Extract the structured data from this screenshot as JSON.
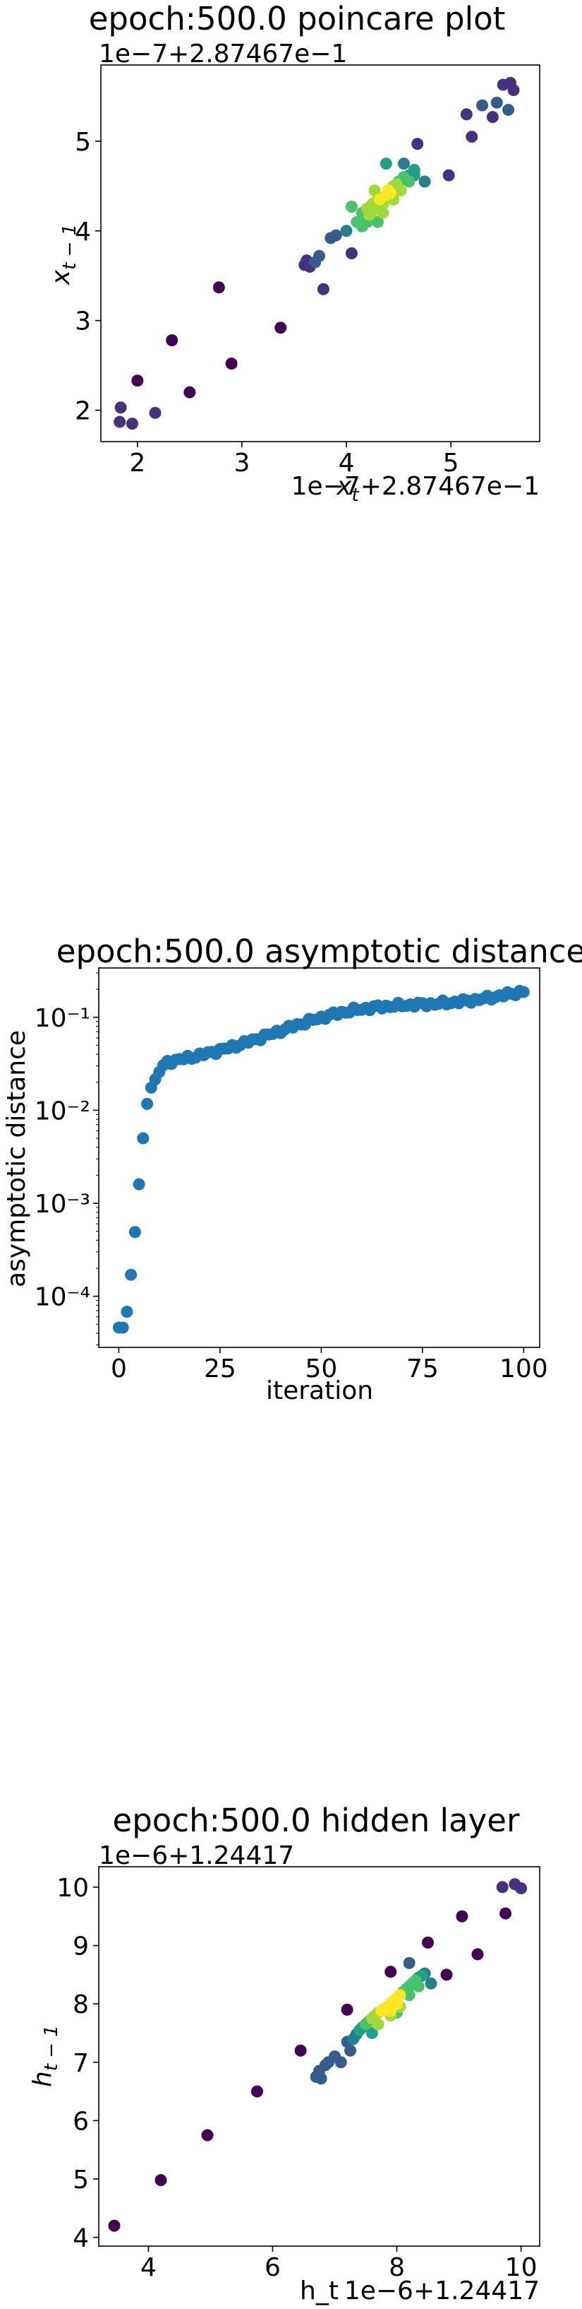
{
  "chart_data": [
    {
      "type": "scatter",
      "title": "epoch:500.0 poincare plot",
      "xlabel": "x_t",
      "ylabel": "x_{t-1}",
      "x_offset_text": "1e−7+2.87467e−1",
      "y_offset_text": "1e−7+2.87467e−1",
      "xlim": [
        1.65,
        5.85
      ],
      "ylim": [
        1.65,
        5.85
      ],
      "xticks": [
        2,
        3,
        4,
        5
      ],
      "yticks": [
        2,
        3,
        4,
        5
      ],
      "xtick_labels": [
        "2",
        "3",
        "4",
        "5"
      ],
      "ytick_labels": [
        "2",
        "3",
        "4",
        "5"
      ],
      "color_by_density": true,
      "points": [
        [
          1.83,
          1.87
        ],
        [
          1.84,
          2.03
        ],
        [
          1.95,
          1.85
        ],
        [
          2.0,
          2.33
        ],
        [
          2.17,
          1.97
        ],
        [
          2.33,
          2.78
        ],
        [
          2.5,
          2.2
        ],
        [
          2.78,
          3.37
        ],
        [
          2.9,
          2.52
        ],
        [
          3.37,
          2.92
        ],
        [
          3.6,
          3.62
        ],
        [
          3.62,
          3.67
        ],
        [
          3.65,
          3.6
        ],
        [
          3.7,
          3.65
        ],
        [
          3.74,
          3.72
        ],
        [
          3.78,
          3.35
        ],
        [
          3.85,
          3.92
        ],
        [
          3.9,
          3.95
        ],
        [
          4.0,
          4.0
        ],
        [
          4.05,
          4.27
        ],
        [
          4.1,
          4.1
        ],
        [
          4.15,
          4.2
        ],
        [
          4.2,
          4.25
        ],
        [
          4.22,
          4.18
        ],
        [
          4.25,
          4.3
        ],
        [
          4.28,
          4.32
        ],
        [
          4.3,
          4.3
        ],
        [
          4.32,
          4.35
        ],
        [
          4.35,
          4.37
        ],
        [
          4.38,
          4.4
        ],
        [
          4.4,
          4.45
        ],
        [
          4.42,
          4.42
        ],
        [
          4.45,
          4.5
        ],
        [
          4.48,
          4.52
        ],
        [
          4.5,
          4.55
        ],
        [
          4.55,
          4.6
        ],
        [
          4.6,
          4.62
        ],
        [
          4.65,
          4.68
        ],
        [
          4.2,
          4.1
        ],
        [
          4.15,
          4.05
        ],
        [
          4.05,
          3.75
        ],
        [
          4.3,
          4.1
        ],
        [
          4.35,
          4.2
        ],
        [
          4.45,
          4.35
        ],
        [
          4.52,
          4.45
        ],
        [
          4.6,
          4.55
        ],
        [
          4.65,
          4.62
        ],
        [
          4.27,
          4.45
        ],
        [
          4.38,
          4.75
        ],
        [
          4.55,
          4.75
        ],
        [
          4.68,
          4.97
        ],
        [
          4.75,
          4.55
        ],
        [
          4.98,
          4.62
        ],
        [
          5.15,
          5.3
        ],
        [
          5.3,
          5.4
        ],
        [
          5.4,
          5.27
        ],
        [
          5.5,
          5.63
        ],
        [
          5.57,
          5.65
        ],
        [
          5.6,
          5.57
        ],
        [
          5.55,
          5.35
        ],
        [
          5.2,
          5.05
        ],
        [
          5.44,
          5.43
        ],
        [
          4.35,
          4.3
        ],
        [
          4.3,
          4.25
        ],
        [
          4.25,
          4.22
        ]
      ]
    },
    {
      "type": "scatter",
      "title": "epoch:500.0 asymptotic distance",
      "xlabel": "iteration",
      "ylabel": "asymptotic distance",
      "yscale": "log",
      "xlim": [
        -4.95,
        103.95
      ],
      "ylim_exp": [
        -4.55,
        -0.47
      ],
      "xticks": [
        0,
        25,
        50,
        75,
        100
      ],
      "xtick_labels": [
        "0",
        "25",
        "50",
        "75",
        "100"
      ],
      "ytick_labels": [
        "10⁻⁴",
        "10⁻³",
        "10⁻²",
        "10⁻¹"
      ],
      "yticks_exp": [
        -4,
        -3,
        -2,
        -1
      ],
      "point_color": "#1f77b4",
      "early_values": [
        4.6e-05,
        4.6e-05,
        6.8e-05,
        0.00017,
        0.00049,
        0.0016,
        0.005,
        0.0117,
        0.0175,
        0.0215,
        0.0258,
        0.0305
      ],
      "late_series": {
        "start_iteration": 12,
        "end_iteration": 100,
        "start_value": 0.033,
        "end_value": 0.19
      }
    },
    {
      "type": "scatter",
      "title": "epoch:500.0 hidden layer",
      "xlabel": "h_t",
      "ylabel": "h_{t-1}",
      "x_offset_text": "1e−6+1.24417",
      "y_offset_text": "1e−6+1.24417",
      "xlim": [
        3.2,
        10.3
      ],
      "ylim": [
        3.85,
        10.35
      ],
      "xticks": [
        4,
        6,
        8,
        10
      ],
      "yticks": [
        4,
        5,
        6,
        7,
        8,
        9,
        10
      ],
      "xtick_labels": [
        "4",
        "6",
        "8",
        "10"
      ],
      "ytick_labels": [
        "4",
        "5",
        "6",
        "7",
        "8",
        "9",
        "10"
      ],
      "color_by_density": true,
      "points": [
        [
          3.45,
          4.2
        ],
        [
          4.2,
          4.98
        ],
        [
          4.95,
          5.75
        ],
        [
          5.75,
          6.5
        ],
        [
          6.45,
          7.2
        ],
        [
          6.7,
          6.75
        ],
        [
          6.75,
          6.85
        ],
        [
          6.78,
          6.72
        ],
        [
          6.85,
          6.95
        ],
        [
          6.9,
          7.0
        ],
        [
          7.0,
          7.1
        ],
        [
          7.1,
          7.0
        ],
        [
          7.2,
          7.35
        ],
        [
          7.25,
          7.2
        ],
        [
          7.3,
          7.4
        ],
        [
          7.35,
          7.48
        ],
        [
          7.4,
          7.55
        ],
        [
          7.45,
          7.6
        ],
        [
          7.5,
          7.65
        ],
        [
          7.55,
          7.7
        ],
        [
          7.6,
          7.75
        ],
        [
          7.65,
          7.8
        ],
        [
          7.7,
          7.85
        ],
        [
          7.75,
          7.88
        ],
        [
          7.8,
          7.92
        ],
        [
          7.85,
          7.95
        ],
        [
          7.9,
          8.0
        ],
        [
          7.95,
          8.05
        ],
        [
          8.0,
          8.1
        ],
        [
          8.05,
          8.15
        ],
        [
          8.1,
          8.2
        ],
        [
          8.15,
          8.25
        ],
        [
          8.2,
          8.3
        ],
        [
          8.25,
          8.35
        ],
        [
          8.3,
          8.4
        ],
        [
          8.35,
          8.45
        ],
        [
          8.4,
          8.48
        ],
        [
          8.45,
          8.52
        ],
        [
          7.2,
          7.9
        ],
        [
          7.6,
          7.5
        ],
        [
          7.7,
          7.65
        ],
        [
          7.9,
          7.8
        ],
        [
          8.0,
          7.85
        ],
        [
          8.05,
          7.95
        ],
        [
          8.2,
          8.15
        ],
        [
          8.35,
          8.3
        ],
        [
          7.9,
          8.55
        ],
        [
          8.2,
          8.7
        ],
        [
          8.5,
          9.05
        ],
        [
          8.55,
          8.35
        ],
        [
          9.05,
          9.5
        ],
        [
          9.3,
          8.85
        ],
        [
          9.7,
          10.0
        ],
        [
          9.9,
          10.05
        ],
        [
          10.0,
          9.98
        ],
        [
          9.75,
          9.55
        ],
        [
          8.8,
          8.5
        ],
        [
          7.85,
          7.95
        ],
        [
          7.9,
          7.88
        ],
        [
          8.0,
          8.0
        ]
      ]
    }
  ]
}
